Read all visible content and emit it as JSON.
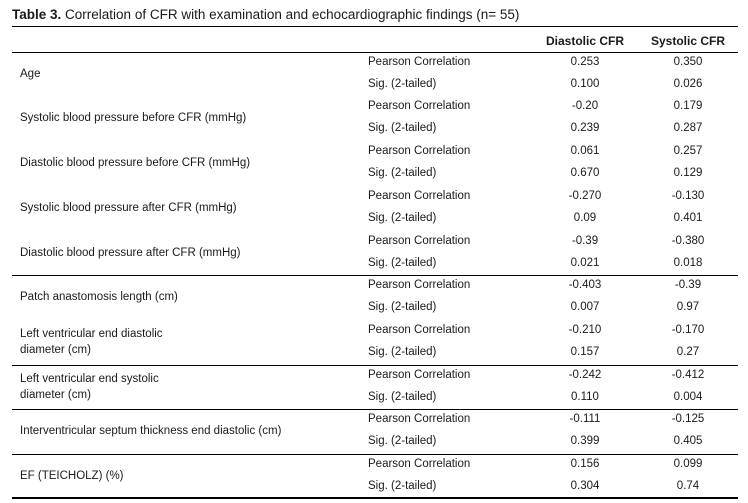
{
  "caption": {
    "label": "Table 3.",
    "text": " Correlation of CFR with examination and echocardiographic findings (n= 55)"
  },
  "columns": [
    "Diastolic CFR",
    "Systolic CFR"
  ],
  "rows": [
    {
      "variable": [
        "Age"
      ],
      "stats": [
        {
          "label": "Pearson Correlation",
          "diastolic": "0.253",
          "systolic": "0.350"
        },
        {
          "label": "Sig. (2-tailed)",
          "diastolic": "0.100",
          "systolic": "0.026"
        }
      ]
    },
    {
      "variable": [
        "Systolic blood pressure before CFR (mmHg)"
      ],
      "stats": [
        {
          "label": "Pearson Correlation",
          "diastolic": "-0.20",
          "systolic": "0.179"
        },
        {
          "label": "Sig. (2-tailed)",
          "diastolic": "0.239",
          "systolic": "0.287"
        }
      ]
    },
    {
      "variable": [
        "Diastolic blood pressure before CFR (mmHg)"
      ],
      "stats": [
        {
          "label": "Pearson Correlation",
          "diastolic": "0.061",
          "systolic": "0.257"
        },
        {
          "label": "Sig. (2-tailed)",
          "diastolic": "0.670",
          "systolic": "0.129"
        }
      ]
    },
    {
      "variable": [
        "Systolic blood pressure after CFR (mmHg)"
      ],
      "stats": [
        {
          "label": "Pearson Correlation",
          "diastolic": "-0.270",
          "systolic": "-0.130"
        },
        {
          "label": "Sig. (2-tailed)",
          "diastolic": "0.09",
          "systolic": "0.401"
        }
      ]
    },
    {
      "variable": [
        "Diastolic blood pressure after CFR (mmHg)"
      ],
      "stats": [
        {
          "label": "Pearson Correlation",
          "diastolic": "-0.39",
          "systolic": "-0.380"
        },
        {
          "label": "Sig. (2-tailed)",
          "diastolic": "0.021",
          "systolic": "0.018"
        }
      ]
    },
    {
      "variable": [
        "Patch anastomosis length (cm)"
      ],
      "stats": [
        {
          "label": "Pearson Correlation",
          "diastolic": "-0.403",
          "systolic": "-0.39"
        },
        {
          "label": "Sig. (2-tailed)",
          "diastolic": "0.007",
          "systolic": "0.97"
        }
      ]
    },
    {
      "variable": [
        "Left ventricular end diastolic",
        "diameter (cm)"
      ],
      "stats": [
        {
          "label": "Pearson Correlation",
          "diastolic": "-0.210",
          "systolic": "-0.170"
        },
        {
          "label": "Sig. (2-tailed)",
          "diastolic": "0.157",
          "systolic": "0.27"
        }
      ]
    },
    {
      "variable": [
        "Left ventricular end systolic",
        "diameter (cm)"
      ],
      "stats": [
        {
          "label": "Pearson Correlation",
          "diastolic": "-0.242",
          "systolic": "-0.412"
        },
        {
          "label": "Sig. (2-tailed)",
          "diastolic": "0.110",
          "systolic": "0.004"
        }
      ]
    },
    {
      "variable": [
        "Interventricular septum thickness end diastolic (cm)"
      ],
      "stats": [
        {
          "label": "Pearson Correlation",
          "diastolic": "-0.111",
          "systolic": "-0.125"
        },
        {
          "label": "Sig. (2-tailed)",
          "diastolic": "0.399",
          "systolic": "0.405"
        }
      ]
    },
    {
      "variable": [
        "EF (TEICHOLZ) (%)"
      ],
      "stats": [
        {
          "label": "Pearson Correlation",
          "diastolic": "0.156",
          "systolic": "0.099"
        },
        {
          "label": "Sig. (2-tailed)",
          "diastolic": "0.304",
          "systolic": "0.74"
        }
      ]
    }
  ]
}
